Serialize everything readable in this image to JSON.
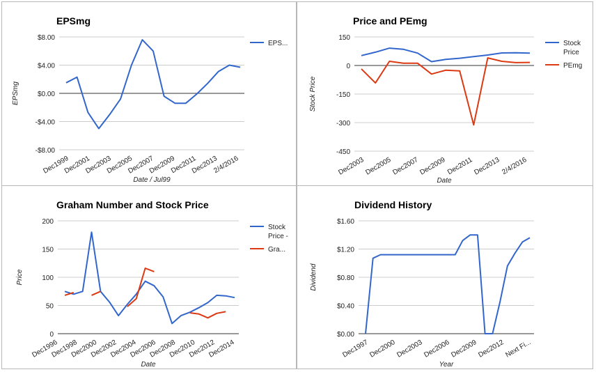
{
  "chart_data": [
    {
      "type": "line",
      "title": "EPSmg",
      "xlabel": "Date / Jul99",
      "ylabel": "EPSmg",
      "ylim": [
        -8,
        8
      ],
      "yticks": [
        "$8.00",
        "$4.00",
        "$0.00",
        "-$4.00",
        "-$8.00"
      ],
      "xticks": [
        "Dec1999",
        "Dec2001",
        "Dec2003",
        "Dec2005",
        "Dec2007",
        "Dec2009",
        "Dec2011",
        "Dec2013",
        "2/4/2016"
      ],
      "series": [
        {
          "name": "EPS...",
          "color": "#3366cc",
          "values": [
            1.5,
            2.3,
            -2.7,
            -5.0,
            -3.0,
            -0.8,
            4.0,
            7.6,
            6.0,
            -0.4,
            -1.4,
            -1.4,
            -0.1,
            1.4,
            3.1,
            4.0,
            3.7
          ]
        }
      ],
      "legend": "right"
    },
    {
      "type": "line",
      "title": "Price and PEmg",
      "xlabel": "Date",
      "ylabel": "Stock Price",
      "ylim": [
        -450,
        150
      ],
      "yticks": [
        "150",
        "0",
        "-150",
        "-300",
        "-450"
      ],
      "xticks": [
        "Dec2003",
        "Dec2005",
        "Dec2007",
        "Dec2009",
        "Dec2011",
        "Dec2013",
        "2/4/2016"
      ],
      "series": [
        {
          "name": "Stock Price",
          "color": "#3366cc",
          "values": [
            52,
            70,
            91,
            85,
            65,
            20,
            32,
            38,
            47,
            55,
            66,
            67,
            65
          ]
        },
        {
          "name": "PEmg",
          "color": "#dc3912",
          "values": [
            -18,
            -92,
            22,
            12,
            12,
            -45,
            -25,
            -28,
            -312,
            40,
            22,
            15,
            16
          ]
        }
      ],
      "legend": "right"
    },
    {
      "type": "line",
      "title": "Graham Number and Stock Price",
      "xlabel": "Date",
      "ylabel": "Price",
      "ylim": [
        0,
        200
      ],
      "yticks": [
        "200",
        "150",
        "100",
        "50",
        "0"
      ],
      "xticks": [
        "Dec1996",
        "Dec1998",
        "Dec2000",
        "Dec2002",
        "Dec2004",
        "Dec2006",
        "Dec2008",
        "Dec2010",
        "Dec2012",
        "Dec2014"
      ],
      "series": [
        {
          "name": "Stock Price -",
          "color": "#3366cc",
          "values": [
            75,
            70,
            75,
            180,
            75,
            56,
            32,
            52,
            70,
            93,
            85,
            65,
            18,
            32,
            38,
            46,
            55,
            68,
            67,
            64
          ]
        },
        {
          "name": "Gra...",
          "color": "#dc3912",
          "values": [
            68,
            73,
            null,
            68,
            75,
            null,
            null,
            48,
            62,
            116,
            110,
            null,
            null,
            null,
            37,
            35,
            28,
            36,
            39,
            null
          ]
        }
      ],
      "legend": "right"
    },
    {
      "type": "line",
      "title": "Dividend History",
      "xlabel": "Year",
      "ylabel": "Dividend",
      "ylim": [
        0,
        1.6
      ],
      "yticks": [
        "$1.60",
        "$1.20",
        "$0.80",
        "$0.40",
        "$0.00"
      ],
      "xticks": [
        "Dec1997",
        "Dec2000",
        "Dec2003",
        "Dec2006",
        "Dec2009",
        "Dec2012",
        "Next Fi..."
      ],
      "series": [
        {
          "name": "Dividend",
          "color": "#3366cc",
          "values": [
            0.0,
            1.07,
            1.12,
            1.12,
            1.12,
            1.12,
            1.12,
            1.12,
            1.12,
            1.12,
            1.12,
            1.12,
            1.12,
            1.32,
            1.4,
            1.4,
            0.0,
            0.0,
            0.45,
            0.96,
            1.14,
            1.3,
            1.36
          ]
        }
      ],
      "legend": "none"
    }
  ]
}
